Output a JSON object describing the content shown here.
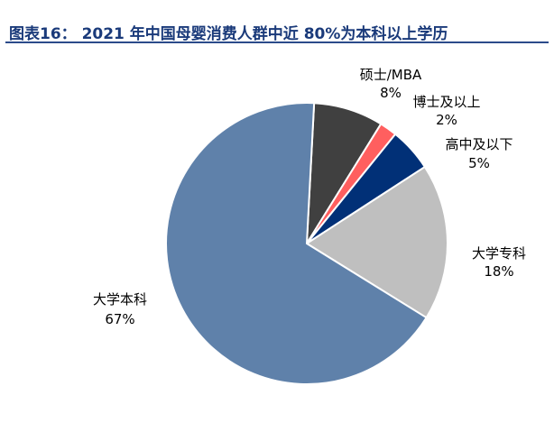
{
  "title": "图表16： 2021 年中国母婴消费人群中近 80%为本科以上学历",
  "chart_data": {
    "type": "pie",
    "title": "图表16： 2021 年中国母婴消费人群中近 80%为本科以上学历",
    "start_angle_deg": 3,
    "direction": "clockwise",
    "slices": [
      {
        "label": "硕士/MBA",
        "value": 8,
        "value_label": "8%",
        "color": "#404040"
      },
      {
        "label": "博士及以上",
        "value": 2,
        "value_label": "2%",
        "color": "#ff5f5f"
      },
      {
        "label": "高中及以下",
        "value": 5,
        "value_label": "5%",
        "color": "#013077"
      },
      {
        "label": "大学专科",
        "value": 18,
        "value_label": "18%",
        "color": "#bfbfbf"
      },
      {
        "label": "大学本科",
        "value": 67,
        "value_label": "67%",
        "color": "#5f81aa"
      }
    ]
  }
}
